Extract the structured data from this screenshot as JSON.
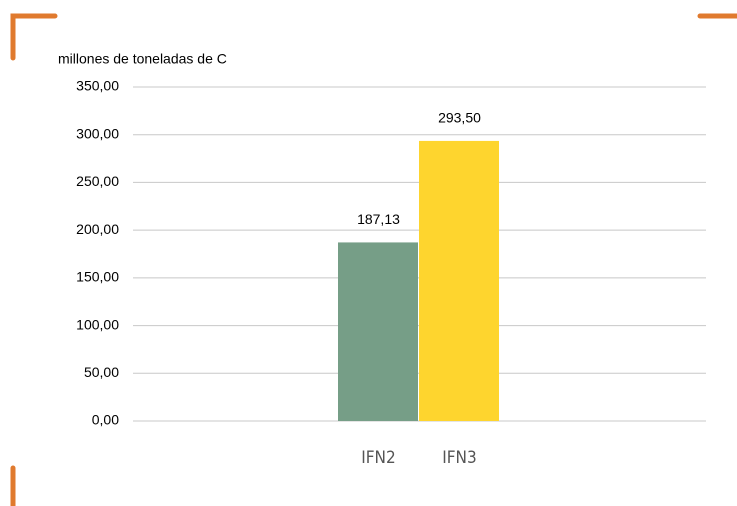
{
  "chart_data": {
    "type": "bar",
    "y_axis_label": "millones de toneladas de C",
    "categories": [
      "IFN2",
      "IFN3"
    ],
    "values": [
      187.13,
      293.5
    ],
    "value_labels": [
      "187,13",
      "293,50"
    ],
    "colors": [
      "#769e87",
      "#fed52e"
    ],
    "ylim": [
      0,
      350
    ],
    "yticks": [
      {
        "value": 0,
        "label": "0,00"
      },
      {
        "value": 50,
        "label": "50,00"
      },
      {
        "value": 100,
        "label": "100,00"
      },
      {
        "value": 150,
        "label": "150,00"
      },
      {
        "value": 200,
        "label": "200,00"
      },
      {
        "value": 250,
        "label": "250,00"
      },
      {
        "value": 300,
        "label": "300,00"
      },
      {
        "value": 350,
        "label": "350,00"
      }
    ],
    "grid": true
  }
}
